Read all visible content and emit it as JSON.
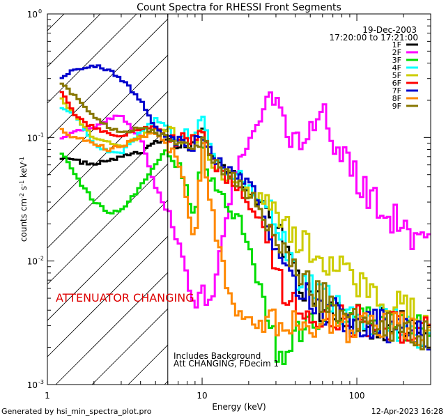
{
  "chart_data": {
    "type": "line",
    "title": "Count Spectra for RHESSI Front Segments",
    "xlabel": "Energy (keV)",
    "ylabel_parts": {
      "pre": "counts cm",
      "exp1": "-2",
      "mid": " s",
      "exp2": "-1",
      "post": " keV",
      "exp3": "-1"
    },
    "xscale": "log",
    "yscale": "log",
    "xlim": [
      1,
      300
    ],
    "ylim": [
      0.001,
      1
    ],
    "x_ticks": [
      {
        "value": 1,
        "label": "1"
      },
      {
        "value": 10,
        "label": "10"
      },
      {
        "value": 100,
        "label": "100"
      }
    ],
    "y_ticks": [
      {
        "value": 0.001,
        "mant": "10",
        "exp": "-3"
      },
      {
        "value": 0.01,
        "mant": "10",
        "exp": "-2"
      },
      {
        "value": 0.1,
        "mant": "10",
        "exp": "-1"
      },
      {
        "value": 1,
        "mant": "10",
        "exp": "0"
      }
    ],
    "date": "19-Dec-2003",
    "time_range": "17:20:00 to 17:21:00",
    "annotation": "ATTENUATOR CHANGING",
    "annotation_color": "#dd0000",
    "shaded_region_keV": [
      1,
      6
    ],
    "notes": [
      "Includes Background",
      "Att CHANGING, FDecim 1"
    ],
    "series": [
      {
        "name": "1F",
        "color": "#000000",
        "x": [
          1.2,
          1.5,
          2,
          2.5,
          3,
          4,
          5,
          6,
          7,
          8,
          9,
          10,
          11,
          12,
          14,
          16,
          18,
          20,
          22,
          25,
          28,
          30,
          35,
          40,
          50,
          60,
          80,
          100,
          150,
          200,
          250,
          300
        ],
        "values": [
          0.07,
          0.065,
          0.06,
          0.065,
          0.07,
          0.075,
          0.09,
          0.1,
          0.09,
          0.085,
          0.1,
          0.12,
          0.075,
          0.065,
          0.055,
          0.05,
          0.045,
          0.035,
          0.032,
          0.028,
          0.025,
          0.018,
          0.012,
          0.008,
          0.005,
          0.004,
          0.0035,
          0.0035,
          0.003,
          0.003,
          0.0028,
          0.0026
        ]
      },
      {
        "name": "2F",
        "color": "#ff00ff",
        "x": [
          1.2,
          1.5,
          2,
          2.5,
          3,
          4,
          5,
          6,
          7,
          8,
          9,
          10,
          11,
          12,
          14,
          16,
          18,
          20,
          22,
          25,
          28,
          30,
          35,
          40,
          50,
          60,
          80,
          100,
          150,
          200,
          250,
          300
        ],
        "values": [
          0.1,
          0.11,
          0.12,
          0.14,
          0.15,
          0.1,
          0.04,
          0.025,
          0.015,
          0.008,
          0.004,
          0.007,
          0.004,
          0.006,
          0.02,
          0.04,
          0.07,
          0.1,
          0.13,
          0.16,
          0.2,
          0.18,
          0.12,
          0.09,
          0.11,
          0.15,
          0.07,
          0.045,
          0.025,
          0.02,
          0.015,
          0.012
        ]
      },
      {
        "name": "3F",
        "color": "#00dd00",
        "x": [
          1.2,
          1.5,
          2,
          2.5,
          3,
          4,
          5,
          6,
          7,
          8,
          9,
          10,
          11,
          12,
          14,
          16,
          18,
          20,
          22,
          25,
          28,
          30,
          35,
          40,
          50,
          60,
          80,
          100,
          150,
          200,
          250,
          300
        ],
        "values": [
          0.08,
          0.05,
          0.03,
          0.025,
          0.025,
          0.04,
          0.06,
          0.08,
          0.06,
          0.04,
          0.02,
          0.1,
          0.05,
          0.04,
          0.03,
          0.025,
          0.02,
          0.012,
          0.008,
          0.005,
          0.003,
          0.002,
          0.0015,
          0.0025,
          0.003,
          0.0035,
          0.004,
          0.0035,
          0.0032,
          0.003,
          0.0028,
          0.0026
        ]
      },
      {
        "name": "4F",
        "color": "#00ffff",
        "x": [
          1.2,
          1.5,
          2,
          2.5,
          3,
          4,
          5,
          6,
          7,
          8,
          9,
          10,
          11,
          12,
          14,
          16,
          18,
          20,
          22,
          25,
          28,
          30,
          35,
          40,
          50,
          60,
          80,
          100,
          150,
          200,
          250,
          300
        ],
        "values": [
          0.18,
          0.15,
          0.09,
          0.075,
          0.075,
          0.11,
          0.14,
          0.12,
          0.1,
          0.12,
          0.09,
          0.14,
          0.09,
          0.07,
          0.055,
          0.05,
          0.048,
          0.04,
          0.035,
          0.03,
          0.025,
          0.02,
          0.012,
          0.008,
          0.006,
          0.005,
          0.004,
          0.0035,
          0.0032,
          0.003,
          0.0025,
          0.002
        ]
      },
      {
        "name": "5F",
        "color": "#cccc00",
        "x": [
          1.2,
          1.5,
          2,
          2.5,
          3,
          4,
          5,
          6,
          7,
          8,
          9,
          10,
          11,
          12,
          14,
          16,
          18,
          20,
          22,
          25,
          28,
          30,
          35,
          40,
          50,
          60,
          80,
          100,
          150,
          200,
          250,
          300
        ],
        "values": [
          0.22,
          0.15,
          0.1,
          0.09,
          0.085,
          0.1,
          0.12,
          0.11,
          0.1,
          0.1,
          0.095,
          0.11,
          0.08,
          0.06,
          0.05,
          0.045,
          0.04,
          0.035,
          0.032,
          0.03,
          0.028,
          0.025,
          0.02,
          0.015,
          0.013,
          0.01,
          0.008,
          0.006,
          0.005,
          0.004,
          0.0035,
          0.003
        ]
      },
      {
        "name": "6F",
        "color": "#ff0000",
        "x": [
          1.2,
          1.5,
          2,
          2.5,
          3,
          4,
          5,
          6,
          7,
          8,
          9,
          10,
          11,
          12,
          14,
          16,
          18,
          20,
          22,
          25,
          28,
          30,
          35,
          40,
          50,
          60,
          80,
          100,
          150,
          200,
          250,
          300
        ],
        "values": [
          0.25,
          0.15,
          0.12,
          0.11,
          0.1,
          0.12,
          0.12,
          0.1,
          0.09,
          0.1,
          0.09,
          0.12,
          0.08,
          0.06,
          0.05,
          0.04,
          0.035,
          0.03,
          0.025,
          0.02,
          0.015,
          0.008,
          0.005,
          0.0045,
          0.004,
          0.0035,
          0.0035,
          0.0032,
          0.003,
          0.0028,
          0.0026,
          0.0025
        ]
      },
      {
        "name": "7F",
        "color": "#0000cc",
        "x": [
          1.2,
          1.5,
          2,
          2.5,
          3,
          4,
          5,
          6,
          7,
          8,
          9,
          10,
          11,
          12,
          14,
          16,
          18,
          20,
          22,
          25,
          28,
          30,
          35,
          40,
          50,
          60,
          80,
          100,
          150,
          200,
          250,
          300
        ],
        "values": [
          0.3,
          0.35,
          0.38,
          0.35,
          0.3,
          0.2,
          0.12,
          0.1,
          0.09,
          0.085,
          0.09,
          0.11,
          0.08,
          0.07,
          0.06,
          0.05,
          0.045,
          0.04,
          0.035,
          0.025,
          0.015,
          0.01,
          0.008,
          0.006,
          0.005,
          0.004,
          0.0035,
          0.003,
          0.003,
          0.0028,
          0.0025,
          0.0022
        ]
      },
      {
        "name": "8F",
        "color": "#ff8800",
        "x": [
          1.2,
          1.5,
          2,
          2.5,
          3,
          4,
          5,
          6,
          7,
          8,
          9,
          10,
          11,
          12,
          14,
          16,
          18,
          20,
          22,
          25,
          28,
          30,
          35,
          40,
          50,
          60,
          80,
          100,
          150,
          200,
          250,
          300
        ],
        "values": [
          0.12,
          0.1,
          0.09,
          0.08,
          0.085,
          0.1,
          0.11,
          0.09,
          0.07,
          0.03,
          0.015,
          0.09,
          0.04,
          0.02,
          0.008,
          0.004,
          0.0035,
          0.0035,
          0.003,
          0.003,
          0.0032,
          0.003,
          0.003,
          0.0032,
          0.003,
          0.0033,
          0.003,
          0.003,
          0.0028,
          0.0028,
          0.0026,
          0.0025
        ]
      },
      {
        "name": "9F",
        "color": "#887700",
        "x": [
          1.2,
          1.5,
          2,
          2.5,
          3,
          4,
          5,
          6,
          7,
          8,
          9,
          10,
          11,
          12,
          14,
          16,
          18,
          20,
          22,
          25,
          28,
          30,
          35,
          40,
          50,
          60,
          80,
          100,
          150,
          200,
          250,
          300
        ],
        "values": [
          0.28,
          0.22,
          0.15,
          0.12,
          0.11,
          0.12,
          0.11,
          0.1,
          0.09,
          0.09,
          0.085,
          0.1,
          0.075,
          0.06,
          0.05,
          0.045,
          0.04,
          0.035,
          0.03,
          0.025,
          0.02,
          0.015,
          0.01,
          0.008,
          0.006,
          0.005,
          0.004,
          0.0035,
          0.003,
          0.0028,
          0.0026,
          0.0024
        ]
      }
    ]
  },
  "footer": {
    "left": "Generated by hsi_min_spectra_plot.pro",
    "right": "12-Apr-2023 16:28"
  }
}
